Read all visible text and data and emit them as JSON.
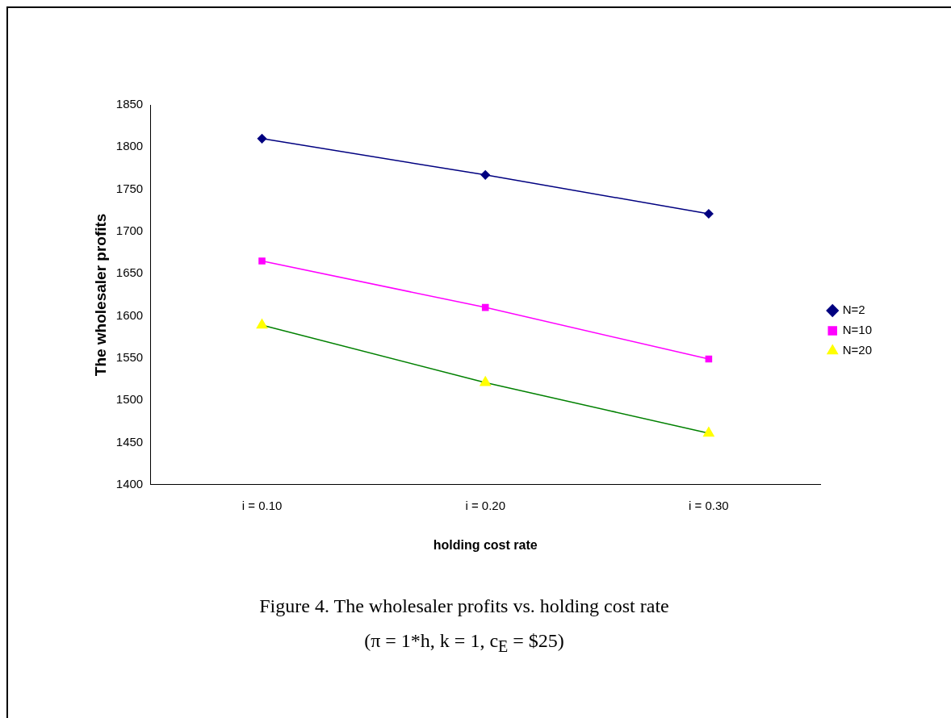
{
  "chart_data": {
    "type": "line",
    "xlabel": "holding cost rate",
    "ylabel": "The wholesaler profits",
    "categories": [
      "i = 0.10",
      "i = 0.20",
      "i = 0.30"
    ],
    "series": [
      {
        "name": "N=2",
        "color": "#000080",
        "marker": "diamond",
        "values": [
          1810,
          1767,
          1721
        ]
      },
      {
        "name": "N=10",
        "color": "#ff00ff",
        "marker": "square",
        "values": [
          1665,
          1610,
          1549
        ]
      },
      {
        "name": "N=20",
        "color": "#008000",
        "colors": [
          "#ffff00",
          "#ffff00",
          "#ffff00"
        ],
        "marker": "triangle",
        "values": [
          1589,
          1521,
          1461
        ]
      }
    ],
    "ylim": [
      1400,
      1850
    ],
    "yticks": [
      1400,
      1450,
      1500,
      1550,
      1600,
      1650,
      1700,
      1750,
      1800,
      1850
    ],
    "grid": false,
    "legend": "right",
    "line_style": "solid",
    "annotations": [
      "Figure 4. The wholesaler profits vs. holding cost rate",
      "(π = 1*h, k = 1, c$_{E}$ = $25)"
    ]
  }
}
